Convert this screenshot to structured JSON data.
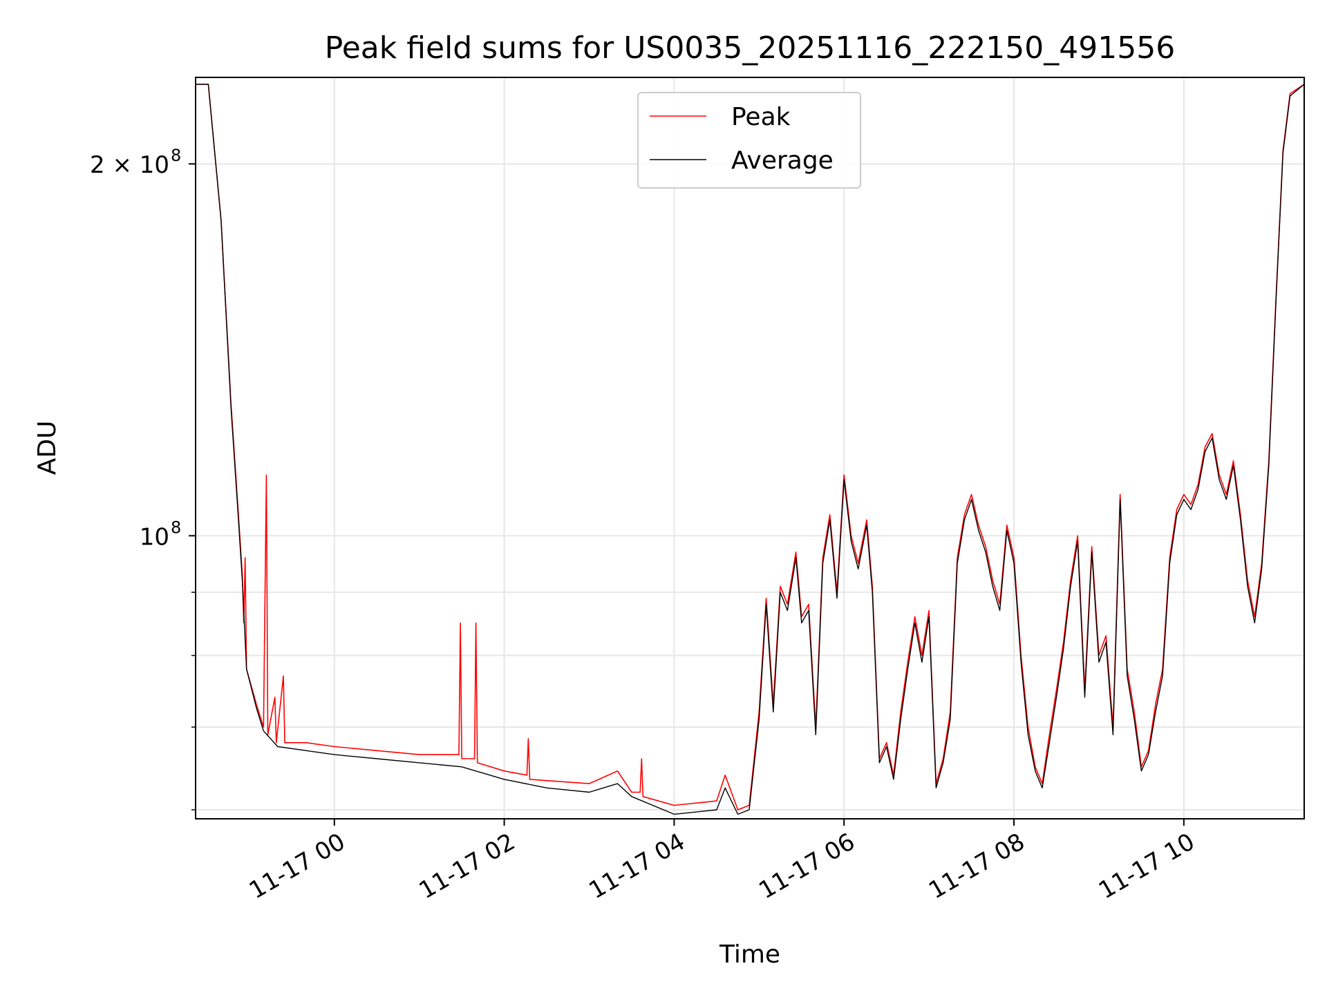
{
  "chart_data": {
    "type": "line",
    "title": "Peak field sums for US0035_20251116_222150_491556",
    "xlabel": "Time",
    "ylabel": "ADU",
    "yscale": "log",
    "xlim": [
      "2025-11-16 22:22",
      "2025-11-17 11:25"
    ],
    "ylim": [
      59000000,
      235000000
    ],
    "xticks": [
      {
        "value": "2025-11-17 00:00",
        "label": "11-17 00"
      },
      {
        "value": "2025-11-17 02:00",
        "label": "11-17 02"
      },
      {
        "value": "2025-11-17 04:00",
        "label": "11-17 04"
      },
      {
        "value": "2025-11-17 06:00",
        "label": "11-17 06"
      },
      {
        "value": "2025-11-17 08:00",
        "label": "11-17 08"
      },
      {
        "value": "2025-11-17 10:00",
        "label": "11-17 10"
      }
    ],
    "yticks": [
      {
        "value": 200000000,
        "label": "2 × 10",
        "exp": "8"
      },
      {
        "value": 100000000,
        "label": "10",
        "exp": "8"
      }
    ],
    "grid": true,
    "legend_position": "top-center",
    "series": [
      {
        "name": "Peak",
        "color": "#ff0000",
        "points": [
          [
            "2025-11-16 22:22",
            232000000
          ],
          [
            "2025-11-16 22:31",
            232000000
          ],
          [
            "2025-11-16 22:40",
            180000000
          ],
          [
            "2025-11-16 22:47",
            128000000
          ],
          [
            "2025-11-16 22:52",
            105000000
          ],
          [
            "2025-11-16 22:55",
            93000000
          ],
          [
            "2025-11-16 22:56",
            85000000
          ],
          [
            "2025-11-16 22:57",
            96000000
          ],
          [
            "2025-11-16 22:58",
            78000000
          ],
          [
            "2025-11-16 23:05",
            73000000
          ],
          [
            "2025-11-16 23:10",
            70000000
          ],
          [
            "2025-11-16 23:12",
            112000000
          ],
          [
            "2025-11-16 23:13",
            69000000
          ],
          [
            "2025-11-16 23:18",
            74000000
          ],
          [
            "2025-11-16 23:19",
            68000000
          ],
          [
            "2025-11-16 23:24",
            77000000
          ],
          [
            "2025-11-16 23:25",
            68000000
          ],
          [
            "2025-11-16 23:40",
            68000000
          ],
          [
            "2025-11-17 00:00",
            67500000
          ],
          [
            "2025-11-17 00:30",
            67000000
          ],
          [
            "2025-11-17 01:00",
            66500000
          ],
          [
            "2025-11-17 01:28",
            66500000
          ],
          [
            "2025-11-17 01:29",
            85000000
          ],
          [
            "2025-11-17 01:30",
            66000000
          ],
          [
            "2025-11-17 01:39",
            66000000
          ],
          [
            "2025-11-17 01:40",
            85000000
          ],
          [
            "2025-11-17 01:41",
            65500000
          ],
          [
            "2025-11-17 02:00",
            64500000
          ],
          [
            "2025-11-17 02:16",
            64000000
          ],
          [
            "2025-11-17 02:17",
            68500000
          ],
          [
            "2025-11-17 02:18",
            63500000
          ],
          [
            "2025-11-17 03:00",
            63000000
          ],
          [
            "2025-11-17 03:20",
            64500000
          ],
          [
            "2025-11-17 03:30",
            62000000
          ],
          [
            "2025-11-17 03:36",
            62000000
          ],
          [
            "2025-11-17 03:37",
            66000000
          ],
          [
            "2025-11-17 03:38",
            61500000
          ],
          [
            "2025-11-17 04:00",
            60500000
          ],
          [
            "2025-11-17 04:30",
            61000000
          ],
          [
            "2025-11-17 04:36",
            64000000
          ],
          [
            "2025-11-17 04:45",
            60000000
          ],
          [
            "2025-11-17 04:53",
            60500000
          ],
          [
            "2025-11-17 05:00",
            72000000
          ],
          [
            "2025-11-17 05:05",
            89000000
          ],
          [
            "2025-11-17 05:10",
            73000000
          ],
          [
            "2025-11-17 05:15",
            91000000
          ],
          [
            "2025-11-17 05:20",
            88000000
          ],
          [
            "2025-11-17 05:26",
            97000000
          ],
          [
            "2025-11-17 05:30",
            86000000
          ],
          [
            "2025-11-17 05:35",
            88000000
          ],
          [
            "2025-11-17 05:40",
            70000000
          ],
          [
            "2025-11-17 05:45",
            96000000
          ],
          [
            "2025-11-17 05:50",
            104000000
          ],
          [
            "2025-11-17 05:55",
            90000000
          ],
          [
            "2025-11-17 06:00",
            112000000
          ],
          [
            "2025-11-17 06:05",
            100000000
          ],
          [
            "2025-11-17 06:10",
            95000000
          ],
          [
            "2025-11-17 06:16",
            103000000
          ],
          [
            "2025-11-17 06:20",
            91000000
          ],
          [
            "2025-11-17 06:25",
            66000000
          ],
          [
            "2025-11-17 06:30",
            68000000
          ],
          [
            "2025-11-17 06:35",
            64000000
          ],
          [
            "2025-11-17 06:40",
            72000000
          ],
          [
            "2025-11-17 06:45",
            79000000
          ],
          [
            "2025-11-17 06:50",
            86000000
          ],
          [
            "2025-11-17 06:55",
            80000000
          ],
          [
            "2025-11-17 07:00",
            87000000
          ],
          [
            "2025-11-17 07:05",
            63000000
          ],
          [
            "2025-11-17 07:10",
            66000000
          ],
          [
            "2025-11-17 07:15",
            72000000
          ],
          [
            "2025-11-17 07:20",
            96000000
          ],
          [
            "2025-11-17 07:25",
            104000000
          ],
          [
            "2025-11-17 07:30",
            108000000
          ],
          [
            "2025-11-17 07:35",
            102000000
          ],
          [
            "2025-11-17 07:40",
            98000000
          ],
          [
            "2025-11-17 07:45",
            92000000
          ],
          [
            "2025-11-17 07:50",
            88000000
          ],
          [
            "2025-11-17 07:55",
            102000000
          ],
          [
            "2025-11-17 08:00",
            96000000
          ],
          [
            "2025-11-17 08:05",
            80000000
          ],
          [
            "2025-11-17 08:10",
            70000000
          ],
          [
            "2025-11-17 08:15",
            65000000
          ],
          [
            "2025-11-17 08:20",
            63000000
          ],
          [
            "2025-11-17 08:25",
            69000000
          ],
          [
            "2025-11-17 08:30",
            75000000
          ],
          [
            "2025-11-17 08:35",
            82000000
          ],
          [
            "2025-11-17 08:40",
            92000000
          ],
          [
            "2025-11-17 08:45",
            100000000
          ],
          [
            "2025-11-17 08:50",
            75000000
          ],
          [
            "2025-11-17 08:55",
            98000000
          ],
          [
            "2025-11-17 09:00",
            80000000
          ],
          [
            "2025-11-17 09:05",
            83000000
          ],
          [
            "2025-11-17 09:10",
            70000000
          ],
          [
            "2025-11-17 09:15",
            108000000
          ],
          [
            "2025-11-17 09:20",
            78000000
          ],
          [
            "2025-11-17 09:25",
            72000000
          ],
          [
            "2025-11-17 09:30",
            65000000
          ],
          [
            "2025-11-17 09:35",
            67000000
          ],
          [
            "2025-11-17 09:40",
            73000000
          ],
          [
            "2025-11-17 09:45",
            78000000
          ],
          [
            "2025-11-17 09:50",
            96000000
          ],
          [
            "2025-11-17 09:55",
            105000000
          ],
          [
            "2025-11-17 10:00",
            108000000
          ],
          [
            "2025-11-17 10:05",
            106000000
          ],
          [
            "2025-11-17 10:10",
            110000000
          ],
          [
            "2025-11-17 10:15",
            118000000
          ],
          [
            "2025-11-17 10:20",
            121000000
          ],
          [
            "2025-11-17 10:25",
            112000000
          ],
          [
            "2025-11-17 10:30",
            108000000
          ],
          [
            "2025-11-17 10:35",
            115000000
          ],
          [
            "2025-11-17 10:40",
            104000000
          ],
          [
            "2025-11-17 10:45",
            92000000
          ],
          [
            "2025-11-17 10:50",
            86000000
          ],
          [
            "2025-11-17 10:55",
            95000000
          ],
          [
            "2025-11-17 11:00",
            115000000
          ],
          [
            "2025-11-17 11:05",
            155000000
          ],
          [
            "2025-11-17 11:10",
            205000000
          ],
          [
            "2025-11-17 11:15",
            228000000
          ],
          [
            "2025-11-17 11:25",
            232000000
          ]
        ]
      },
      {
        "name": "Average",
        "color": "#000000",
        "points": [
          [
            "2025-11-16 22:22",
            232000000
          ],
          [
            "2025-11-16 22:31",
            232000000
          ],
          [
            "2025-11-16 22:40",
            180000000
          ],
          [
            "2025-11-16 22:47",
            127000000
          ],
          [
            "2025-11-16 22:52",
            104000000
          ],
          [
            "2025-11-16 22:55",
            92000000
          ],
          [
            "2025-11-16 22:58",
            78000000
          ],
          [
            "2025-11-16 23:05",
            72500000
          ],
          [
            "2025-11-16 23:10",
            69500000
          ],
          [
            "2025-11-16 23:20",
            67500000
          ],
          [
            "2025-11-16 23:40",
            67000000
          ],
          [
            "2025-11-17 00:00",
            66500000
          ],
          [
            "2025-11-17 00:30",
            66000000
          ],
          [
            "2025-11-17 01:00",
            65500000
          ],
          [
            "2025-11-17 01:30",
            65000000
          ],
          [
            "2025-11-17 02:00",
            63500000
          ],
          [
            "2025-11-17 02:30",
            62500000
          ],
          [
            "2025-11-17 03:00",
            62000000
          ],
          [
            "2025-11-17 03:20",
            63000000
          ],
          [
            "2025-11-17 03:30",
            61500000
          ],
          [
            "2025-11-17 04:00",
            59500000
          ],
          [
            "2025-11-17 04:30",
            60000000
          ],
          [
            "2025-11-17 04:36",
            62500000
          ],
          [
            "2025-11-17 04:45",
            59500000
          ],
          [
            "2025-11-17 04:53",
            60000000
          ],
          [
            "2025-11-17 05:00",
            71000000
          ],
          [
            "2025-11-17 05:05",
            88000000
          ],
          [
            "2025-11-17 05:10",
            72000000
          ],
          [
            "2025-11-17 05:15",
            90000000
          ],
          [
            "2025-11-17 05:20",
            87000000
          ],
          [
            "2025-11-17 05:26",
            96000000
          ],
          [
            "2025-11-17 05:30",
            85000000
          ],
          [
            "2025-11-17 05:35",
            87000000
          ],
          [
            "2025-11-17 05:40",
            69000000
          ],
          [
            "2025-11-17 05:45",
            95000000
          ],
          [
            "2025-11-17 05:50",
            103000000
          ],
          [
            "2025-11-17 05:55",
            89000000
          ],
          [
            "2025-11-17 06:00",
            111000000
          ],
          [
            "2025-11-17 06:05",
            99000000
          ],
          [
            "2025-11-17 06:10",
            94000000
          ],
          [
            "2025-11-17 06:16",
            102000000
          ],
          [
            "2025-11-17 06:20",
            90000000
          ],
          [
            "2025-11-17 06:25",
            65500000
          ],
          [
            "2025-11-17 06:30",
            67500000
          ],
          [
            "2025-11-17 06:35",
            63500000
          ],
          [
            "2025-11-17 06:40",
            71000000
          ],
          [
            "2025-11-17 06:45",
            78000000
          ],
          [
            "2025-11-17 06:50",
            85000000
          ],
          [
            "2025-11-17 06:55",
            79000000
          ],
          [
            "2025-11-17 07:00",
            86000000
          ],
          [
            "2025-11-17 07:05",
            62500000
          ],
          [
            "2025-11-17 07:10",
            65500000
          ],
          [
            "2025-11-17 07:15",
            71000000
          ],
          [
            "2025-11-17 07:20",
            95000000
          ],
          [
            "2025-11-17 07:25",
            103000000
          ],
          [
            "2025-11-17 07:30",
            107000000
          ],
          [
            "2025-11-17 07:35",
            101000000
          ],
          [
            "2025-11-17 07:40",
            97000000
          ],
          [
            "2025-11-17 07:45",
            91000000
          ],
          [
            "2025-11-17 07:50",
            87000000
          ],
          [
            "2025-11-17 07:55",
            101000000
          ],
          [
            "2025-11-17 08:00",
            95000000
          ],
          [
            "2025-11-17 08:05",
            79000000
          ],
          [
            "2025-11-17 08:10",
            69000000
          ],
          [
            "2025-11-17 08:15",
            64500000
          ],
          [
            "2025-11-17 08:20",
            62500000
          ],
          [
            "2025-11-17 08:25",
            68000000
          ],
          [
            "2025-11-17 08:30",
            74000000
          ],
          [
            "2025-11-17 08:35",
            81000000
          ],
          [
            "2025-11-17 08:40",
            91000000
          ],
          [
            "2025-11-17 08:45",
            99000000
          ],
          [
            "2025-11-17 08:50",
            74000000
          ],
          [
            "2025-11-17 08:55",
            97000000
          ],
          [
            "2025-11-17 09:00",
            79000000
          ],
          [
            "2025-11-17 09:05",
            82000000
          ],
          [
            "2025-11-17 09:10",
            69000000
          ],
          [
            "2025-11-17 09:15",
            107000000
          ],
          [
            "2025-11-17 09:20",
            77000000
          ],
          [
            "2025-11-17 09:25",
            71000000
          ],
          [
            "2025-11-17 09:30",
            64500000
          ],
          [
            "2025-11-17 09:35",
            66500000
          ],
          [
            "2025-11-17 09:40",
            72000000
          ],
          [
            "2025-11-17 09:45",
            77000000
          ],
          [
            "2025-11-17 09:50",
            95000000
          ],
          [
            "2025-11-17 09:55",
            104000000
          ],
          [
            "2025-11-17 10:00",
            107000000
          ],
          [
            "2025-11-17 10:05",
            105000000
          ],
          [
            "2025-11-17 10:10",
            109000000
          ],
          [
            "2025-11-17 10:15",
            117000000
          ],
          [
            "2025-11-17 10:20",
            120000000
          ],
          [
            "2025-11-17 10:25",
            111000000
          ],
          [
            "2025-11-17 10:30",
            107000000
          ],
          [
            "2025-11-17 10:35",
            114000000
          ],
          [
            "2025-11-17 10:40",
            103000000
          ],
          [
            "2025-11-17 10:45",
            91000000
          ],
          [
            "2025-11-17 10:50",
            85000000
          ],
          [
            "2025-11-17 10:55",
            94000000
          ],
          [
            "2025-11-17 11:00",
            114000000
          ],
          [
            "2025-11-17 11:05",
            154000000
          ],
          [
            "2025-11-17 11:10",
            204000000
          ],
          [
            "2025-11-17 11:15",
            227000000
          ],
          [
            "2025-11-17 11:25",
            232000000
          ]
        ]
      }
    ]
  }
}
